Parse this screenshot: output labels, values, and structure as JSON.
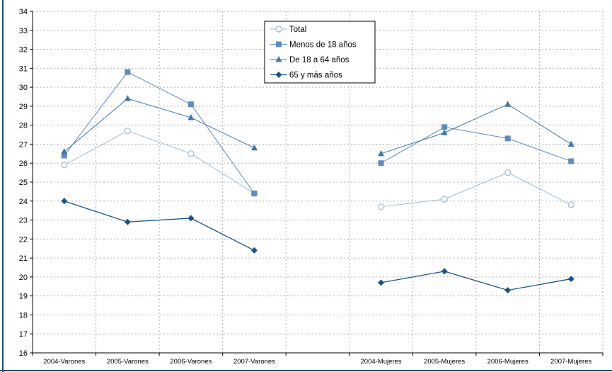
{
  "colors": {
    "frame": "#1f4e79",
    "grid": "#b0b0b0",
    "total": "#9fbbd9",
    "menos": "#5b8cc4",
    "de18": "#3f76b0",
    "mayor65": "#17548f"
  },
  "chart_data": {
    "type": "line",
    "title": "",
    "xlabel": "",
    "ylabel": "",
    "ylim": [
      16,
      34
    ],
    "yticks": [
      16,
      17,
      18,
      19,
      20,
      21,
      22,
      23,
      24,
      25,
      26,
      27,
      28,
      29,
      30,
      31,
      32,
      33,
      34
    ],
    "grid": true,
    "legend_position": "top-center",
    "categories": [
      "2004-Varones",
      "2005-Varones",
      "2006-Varones",
      "2007-Varones",
      "",
      "2004-Mujeres",
      "2005-Mujeres",
      "2006-Mujeres",
      "2007-Mujeres"
    ],
    "series": [
      {
        "name": "Total",
        "marker": "circle-open",
        "color_key": "total",
        "values": [
          25.9,
          27.7,
          26.5,
          24.4,
          null,
          23.7,
          24.1,
          25.5,
          23.8
        ]
      },
      {
        "name": "Menos de 18 años",
        "marker": "square",
        "color_key": "menos",
        "values": [
          26.4,
          30.8,
          29.1,
          24.4,
          null,
          26.0,
          27.9,
          27.3,
          26.1
        ]
      },
      {
        "name": "De 18 a 64 años",
        "marker": "triangle",
        "color_key": "de18",
        "values": [
          26.6,
          29.4,
          28.4,
          26.8,
          null,
          26.5,
          27.6,
          29.1,
          27.0
        ]
      },
      {
        "name": "65 y más años",
        "marker": "diamond",
        "color_key": "mayor65",
        "values": [
          24.0,
          22.9,
          23.1,
          21.4,
          null,
          19.7,
          20.3,
          19.3,
          19.9
        ]
      }
    ]
  }
}
